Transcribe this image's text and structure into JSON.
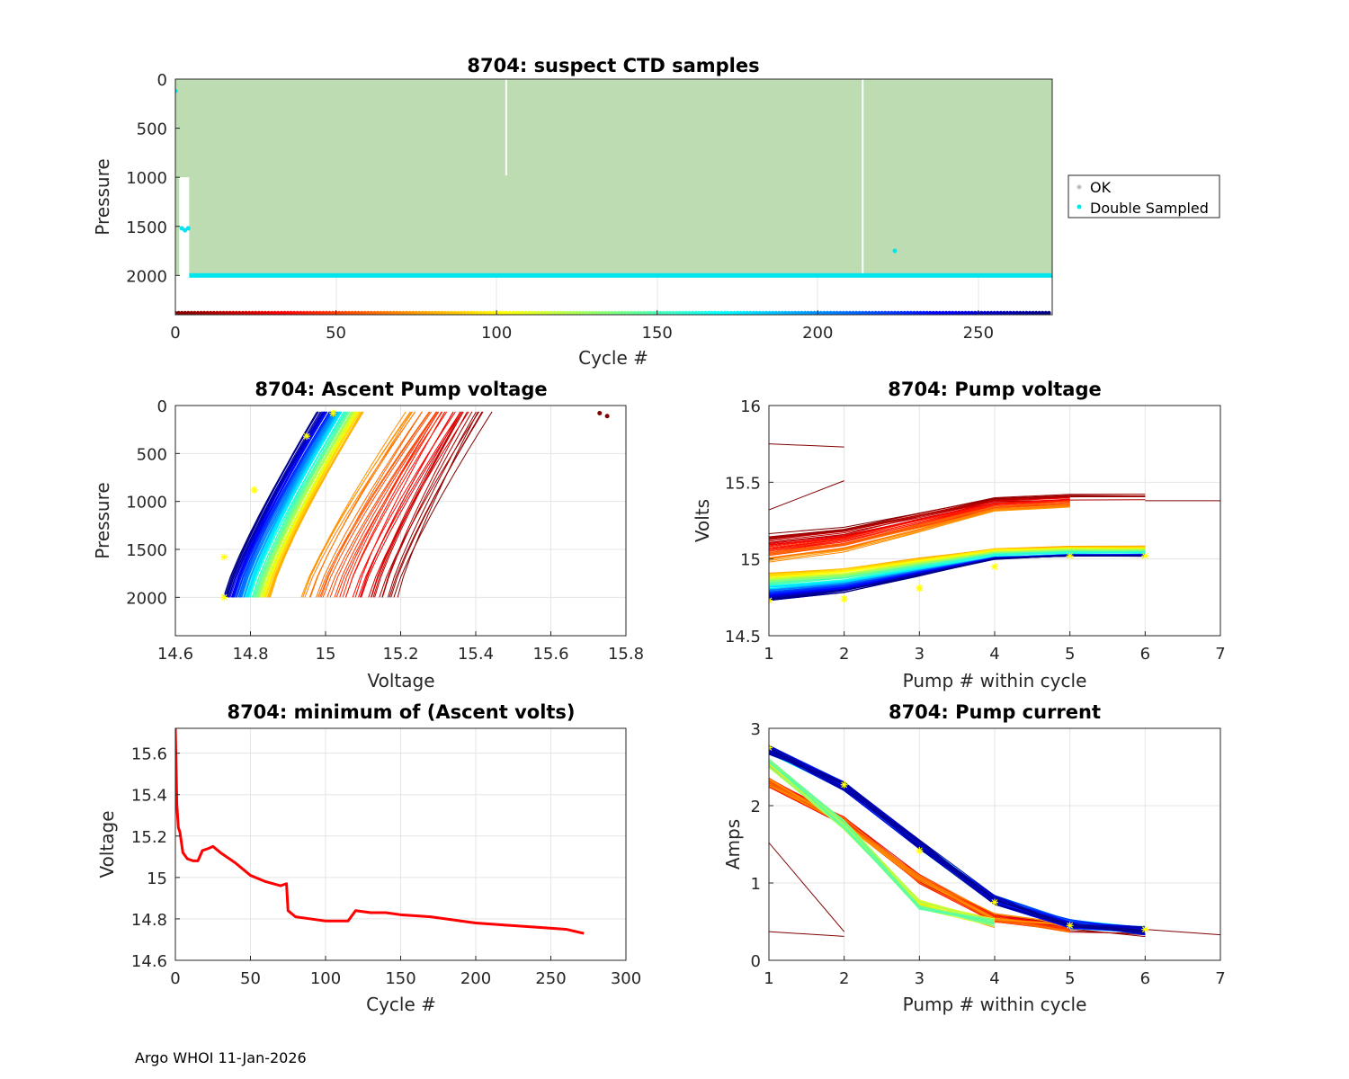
{
  "footer": "Argo WHOI 11-Jan-2026",
  "chart_data": [
    {
      "id": "ctd",
      "type": "scatter",
      "title": "8704: suspect CTD samples",
      "xlabel": "Cycle #",
      "ylabel": "Pressure",
      "xlim": [
        0,
        273
      ],
      "ylim": [
        0,
        2400
      ],
      "y_reversed": true,
      "xticks": [
        0,
        50,
        100,
        150,
        200,
        250
      ],
      "yticks": [
        0,
        500,
        1000,
        1500,
        2000
      ],
      "legend_loc": "outside-right",
      "legend": [
        {
          "label": "OK",
          "color": "#c0c0c0"
        },
        {
          "label": "Double Sampled",
          "color": "#00e5ee"
        }
      ],
      "colors": {
        "ok_fill": "#bddcb1",
        "double": "#00e5ee"
      },
      "ok_profile_max_pressure": 2000,
      "gaps": [
        {
          "cycle": 103,
          "to_pressure": 980
        },
        {
          "cycle": 214,
          "to_pressure": 2010
        }
      ],
      "double_sampled_points": [
        [
          0,
          120
        ],
        [
          2,
          1520
        ],
        [
          3,
          1540
        ],
        [
          4,
          1520
        ],
        [
          224,
          1750
        ]
      ],
      "double_sampled_bottom_pressure": 2000,
      "cycle_color_strip_pressure": 2400
    },
    {
      "id": "ascent",
      "type": "line",
      "title": "8704: Ascent Pump voltage",
      "xlabel": "Voltage",
      "ylabel": "Pressure",
      "xlim": [
        14.6,
        15.8
      ],
      "ylim": [
        0,
        2400
      ],
      "y_reversed": true,
      "xticks": [
        14.6,
        14.8,
        15,
        15.2,
        15.4,
        15.6,
        15.8
      ],
      "yticks": [
        0,
        500,
        1000,
        1500,
        2000
      ],
      "colormap": "jet (cycle 1 = dark red, last cycle = dark blue)",
      "highlight_points": [
        [
          14.73,
          2000
        ],
        [
          14.73,
          1580
        ],
        [
          14.81,
          880
        ],
        [
          14.95,
          320
        ],
        [
          15.02,
          80
        ]
      ],
      "outlier_points": [
        [
          15.73,
          80
        ],
        [
          15.75,
          110
        ]
      ]
    },
    {
      "id": "pumpv",
      "type": "line",
      "title": "8704: Pump voltage",
      "xlabel": "Pump # within cycle",
      "ylabel": "Volts",
      "xlim": [
        1,
        7
      ],
      "ylim": [
        14.5,
        16
      ],
      "xticks": [
        1,
        2,
        3,
        4,
        5,
        6,
        7
      ],
      "yticks": [
        14.5,
        15,
        15.5,
        16
      ],
      "colormap": "jet",
      "highlight_points": [
        [
          1,
          14.73
        ],
        [
          2,
          14.74
        ],
        [
          3,
          14.81
        ],
        [
          4,
          14.95
        ],
        [
          5,
          15.02
        ],
        [
          6,
          15.02
        ]
      ],
      "special_lines": [
        {
          "x": [
            1,
            2
          ],
          "y": [
            15.75,
            15.73
          ]
        },
        {
          "x": [
            1,
            2
          ],
          "y": [
            15.32,
            15.51
          ]
        },
        {
          "x": [
            6,
            7
          ],
          "y": [
            15.38,
            15.38
          ]
        }
      ]
    },
    {
      "id": "minv",
      "type": "line",
      "title": "8704: minimum of (Ascent volts)",
      "xlabel": "Cycle #",
      "ylabel": "Voltage",
      "xlim": [
        0,
        300
      ],
      "ylim": [
        14.6,
        15.72
      ],
      "xticks": [
        0,
        50,
        100,
        150,
        200,
        250,
        300
      ],
      "yticks": [
        14.6,
        14.8,
        15,
        15.2,
        15.4,
        15.6
      ],
      "series": [
        {
          "name": "minimum ascent voltage",
          "color": "#ff0000",
          "x": [
            0,
            1,
            2,
            3,
            5,
            8,
            12,
            15,
            18,
            22,
            25,
            30,
            40,
            50,
            60,
            70,
            74,
            75,
            80,
            90,
            100,
            110,
            115,
            120,
            130,
            140,
            150,
            170,
            190,
            200,
            220,
            240,
            260,
            272
          ],
          "y": [
            15.72,
            15.35,
            15.24,
            15.22,
            15.12,
            15.09,
            15.08,
            15.08,
            15.13,
            15.14,
            15.15,
            15.12,
            15.07,
            15.01,
            14.98,
            14.96,
            14.97,
            14.84,
            14.81,
            14.8,
            14.79,
            14.79,
            14.79,
            14.84,
            14.83,
            14.83,
            14.82,
            14.81,
            14.79,
            14.78,
            14.77,
            14.76,
            14.75,
            14.73
          ]
        }
      ]
    },
    {
      "id": "pumpc",
      "type": "line",
      "title": "8704: Pump current",
      "xlabel": "Pump # within cycle",
      "ylabel": "Amps",
      "xlim": [
        1,
        7
      ],
      "ylim": [
        0,
        3
      ],
      "xticks": [
        1,
        2,
        3,
        4,
        5,
        6,
        7
      ],
      "yticks": [
        0,
        1,
        2,
        3
      ],
      "colormap": "jet",
      "highlight_points": [
        [
          1,
          2.75
        ],
        [
          2,
          2.27
        ],
        [
          3,
          1.42
        ],
        [
          4,
          0.75
        ],
        [
          5,
          0.45
        ],
        [
          6,
          0.4
        ]
      ],
      "special_lines": [
        {
          "x": [
            1,
            2
          ],
          "y": [
            1.52,
            0.37
          ]
        },
        {
          "x": [
            1,
            2
          ],
          "y": [
            0.37,
            0.31
          ]
        },
        {
          "x": [
            6,
            7
          ],
          "y": [
            0.4,
            0.33
          ]
        }
      ]
    }
  ]
}
